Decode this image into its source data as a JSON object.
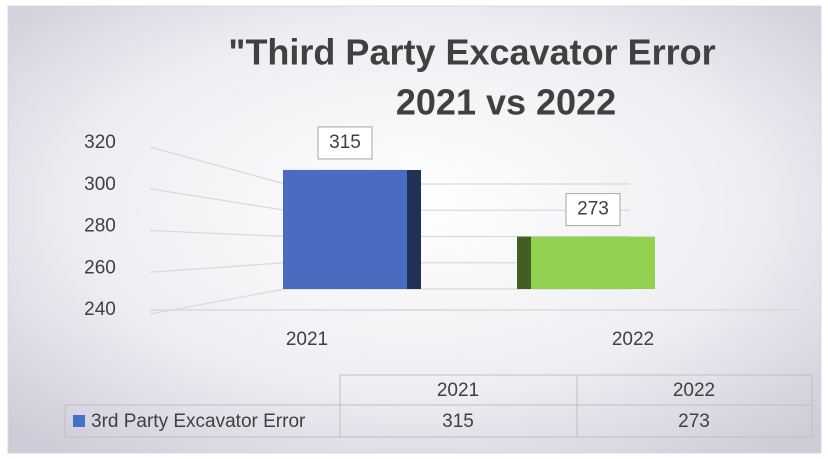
{
  "chart_data": {
    "type": "bar3d",
    "title": [
      "\"Third Party Excavator Error",
      "2021 vs 2022"
    ],
    "categories": [
      "2021",
      "2022"
    ],
    "series": [
      {
        "name": "3rd Party Excavator Error",
        "color": "#4472c4",
        "colors": [
          "#4a6cc0",
          "#92d050"
        ],
        "values": [
          315,
          273
        ]
      }
    ],
    "ylim": [
      240,
      320
    ],
    "yticks": [
      240,
      260,
      280,
      300,
      320
    ],
    "grid": true,
    "data_table": true
  }
}
